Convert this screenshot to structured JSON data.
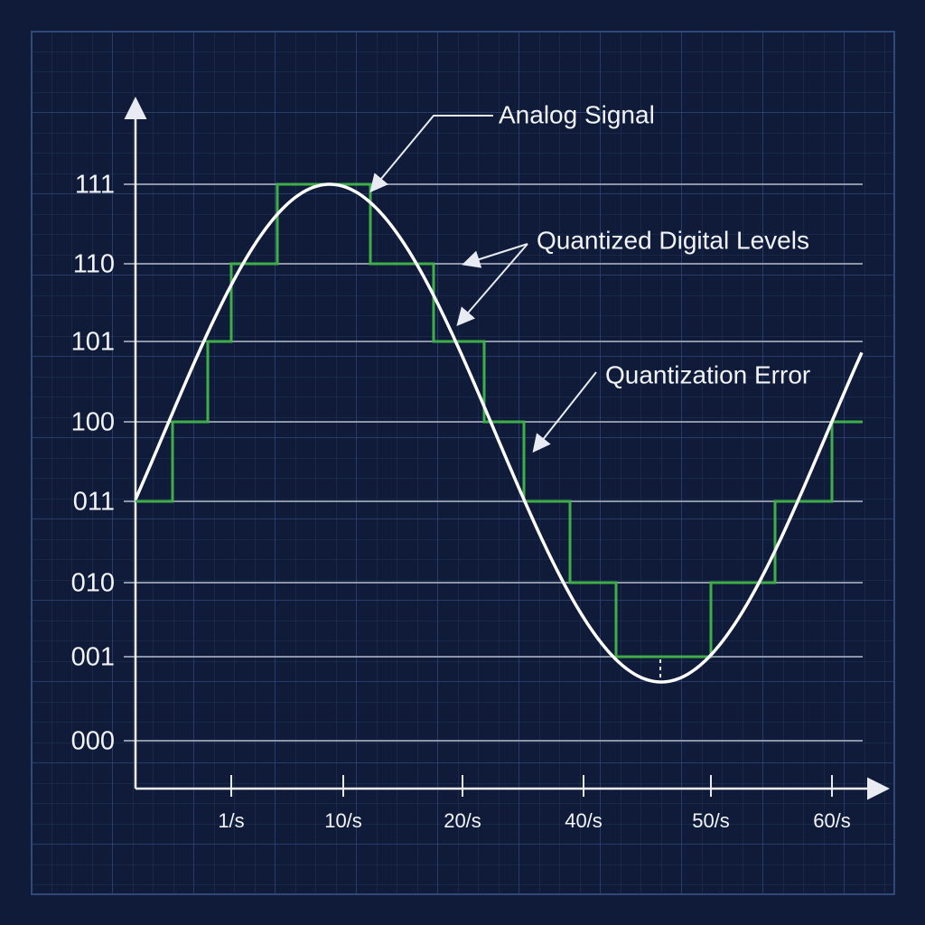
{
  "y_axis": {
    "labels": [
      "111",
      "110",
      "101",
      "100",
      "011",
      "010",
      "001",
      "000"
    ]
  },
  "x_axis": {
    "labels": [
      "1/s",
      "10/s",
      "20/s",
      "40/s",
      "50/s",
      "60/s"
    ]
  },
  "annotations": [
    "Analog Signal",
    "Quantized Digital Levels",
    "Quantization Error"
  ]
}
